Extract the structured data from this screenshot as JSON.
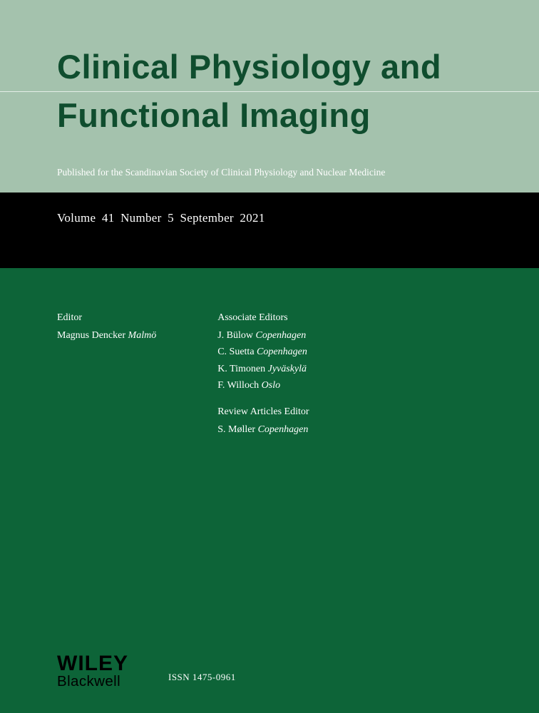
{
  "colors": {
    "header_bg": "#a4c2ad",
    "title_color": "#0f4d2e",
    "volume_bg": "#000000",
    "main_bg": "#0d6438",
    "text_light": "#ffffff"
  },
  "journal": {
    "title_line1": "Clinical Physiology and",
    "title_line2": "Functional Imaging",
    "society": "Published for the Scandinavian Society of Clinical Physiology and Nuclear Medicine"
  },
  "issue": {
    "volume_line": "Volume 41  Number 5  September 2021"
  },
  "editors": {
    "editor_role": "Editor",
    "editor_name": "Magnus Dencker",
    "editor_city": "Malmö",
    "assoc_role": "Associate Editors",
    "assoc": [
      {
        "name": "J. Bülow",
        "city": "Copenhagen"
      },
      {
        "name": "C. Suetta",
        "city": "Copenhagen"
      },
      {
        "name": "K. Timonen",
        "city": "Jyväskylä"
      },
      {
        "name": "F. Willoch",
        "city": "Oslo"
      }
    ],
    "review_role": "Review Articles Editor",
    "review_name": "S. Møller",
    "review_city": "Copenhagen"
  },
  "publisher": {
    "line1": "WILEY",
    "line2": "Blackwell"
  },
  "issn": "ISSN 1475-0961"
}
